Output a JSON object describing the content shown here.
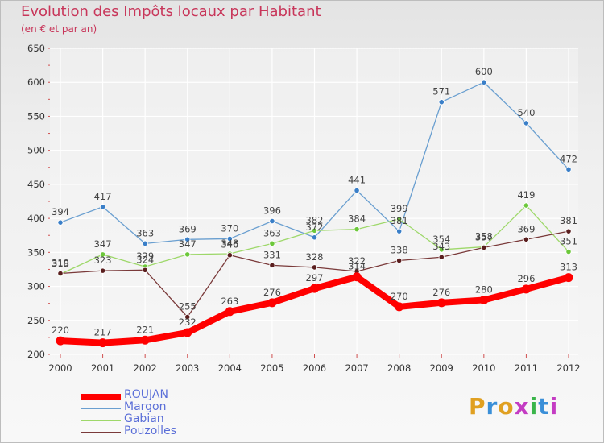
{
  "header": {
    "title": "Evolution des Impôts locaux par Habitant",
    "subtitle": "(en € et par an)"
  },
  "logo": {
    "text": "Proxiti",
    "colors": [
      "#e0a021",
      "#3a8fd8",
      "#e0a021",
      "#c43cc3",
      "#3ab54a",
      "#3a8fd8",
      "#c43cc3"
    ]
  },
  "chart_data": {
    "type": "line",
    "title": "Evolution des Impôts locaux par Habitant",
    "subtitle": "(en € et par an)",
    "xlabel": "",
    "ylabel": "",
    "ylim": [
      200,
      650
    ],
    "yticks": [
      200,
      250,
      300,
      350,
      400,
      450,
      500,
      550,
      600,
      650
    ],
    "grid": true,
    "legend_position": "bottom-left",
    "categories": [
      "2000",
      "2001",
      "2002",
      "2003",
      "2004",
      "2005",
      "2006",
      "2007",
      "2008",
      "2009",
      "2010",
      "2011",
      "2012"
    ],
    "series": [
      {
        "name": "ROUJAN",
        "color": "#ff0000",
        "point_color": "#ff0000",
        "width": 8,
        "values": [
          220,
          217,
          221,
          232,
          263,
          276,
          297,
          314,
          270,
          276,
          280,
          296,
          313
        ]
      },
      {
        "name": "Margon",
        "color": "#6a9fd0",
        "point_color": "#3a7fc8",
        "width": 1.3,
        "values": [
          394,
          417,
          363,
          369,
          370,
          396,
          372,
          441,
          381,
          571,
          600,
          540,
          472
        ]
      },
      {
        "name": "Gabian",
        "color": "#9ed86a",
        "point_color": "#6cc83a",
        "width": 1.3,
        "values": [
          318,
          347,
          329,
          347,
          348,
          363,
          382,
          384,
          399,
          354,
          358,
          419,
          351
        ]
      },
      {
        "name": "Pouzolles",
        "color": "#7a3a3a",
        "point_color": "#5a1e1e",
        "width": 1.3,
        "values": [
          319,
          323,
          324,
          255,
          346,
          331,
          328,
          322,
          338,
          343,
          357,
          369,
          381
        ]
      }
    ]
  }
}
